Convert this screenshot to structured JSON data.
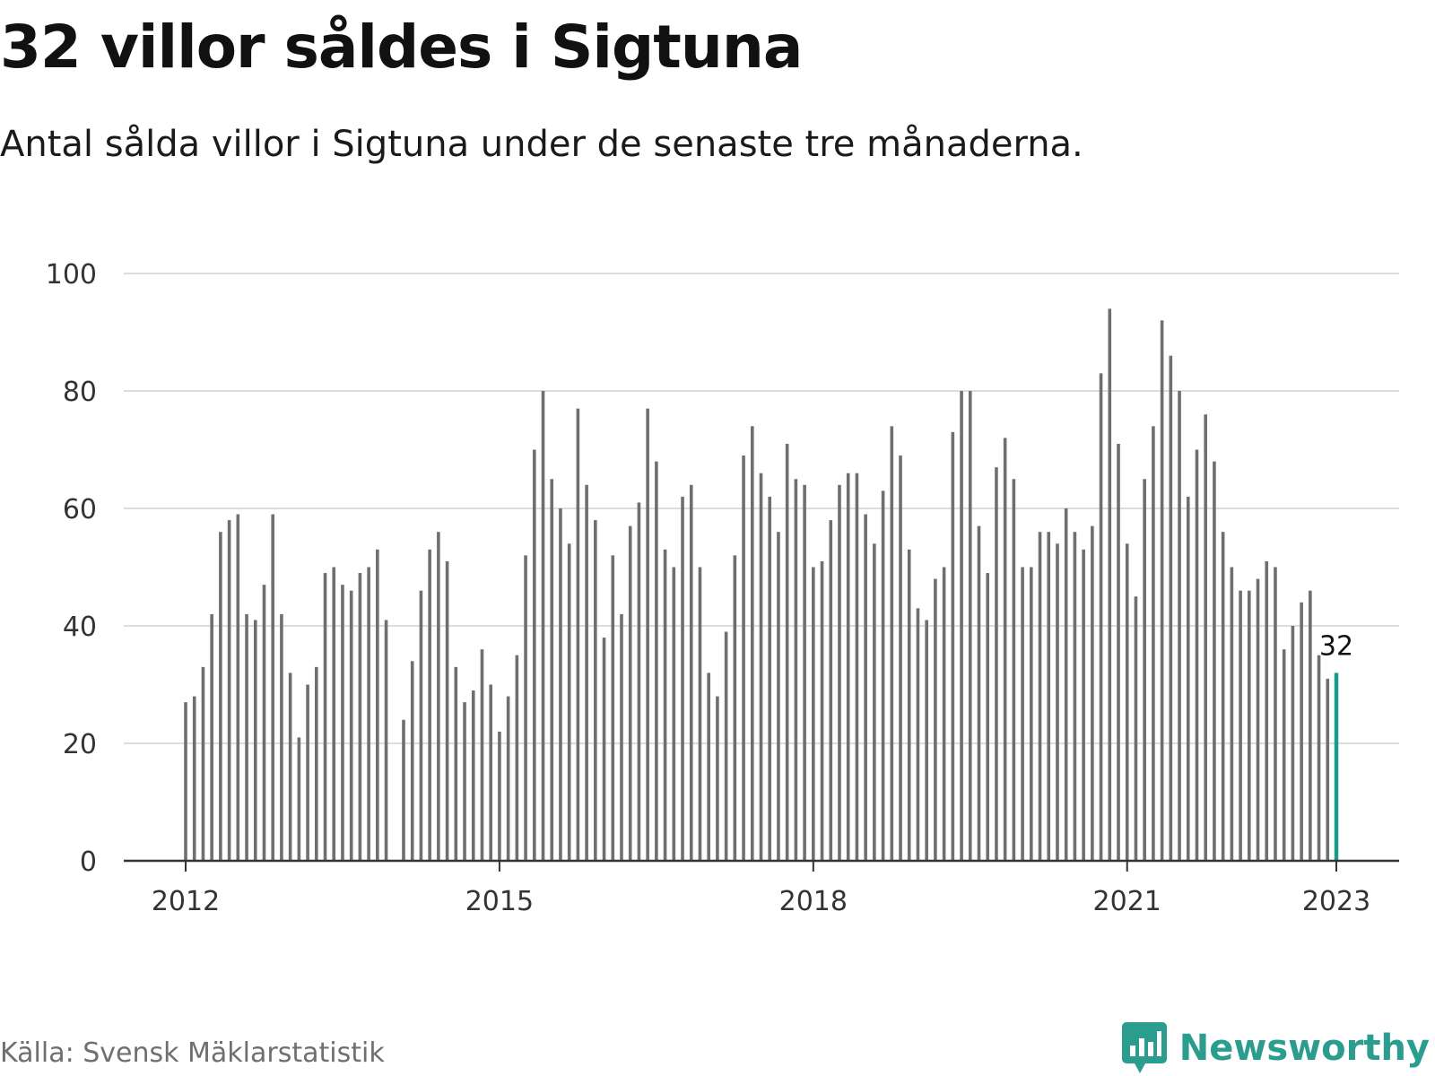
{
  "title": "32 villor såldes i Sigtuna",
  "subtitle": "Antal sålda villor i Sigtuna under de senaste tre månaderna.",
  "source": "Källa: Svensk Mäklarstatistik",
  "brand": {
    "name": "Newsworthy",
    "icon": "newsworthy-logo-icon",
    "color": "#2a9d8f"
  },
  "colors": {
    "bar": "#6f6f6f",
    "highlight": "#1a9a8c",
    "grid": "#dddddd",
    "axis": "#333333"
  },
  "chart_data": {
    "type": "bar",
    "title": "32 villor såldes i Sigtuna",
    "xlabel": "",
    "ylabel": "",
    "ylim": [
      0,
      100
    ],
    "yticks": [
      0,
      20,
      40,
      60,
      80,
      100
    ],
    "xticks": [
      "2012",
      "2015",
      "2018",
      "2021",
      "2023"
    ],
    "x_start": "2012-01",
    "x_end": "2023-01",
    "grid": true,
    "legend": "none",
    "highlight_label": "32",
    "values": [
      27,
      28,
      33,
      42,
      56,
      58,
      59,
      42,
      41,
      47,
      59,
      42,
      32,
      21,
      30,
      33,
      49,
      50,
      47,
      46,
      49,
      50,
      53,
      41,
      null,
      24,
      34,
      46,
      53,
      56,
      51,
      33,
      27,
      29,
      36,
      30,
      22,
      28,
      35,
      52,
      70,
      80,
      65,
      60,
      54,
      77,
      64,
      58,
      38,
      52,
      42,
      57,
      61,
      77,
      68,
      53,
      50,
      62,
      64,
      50,
      32,
      28,
      39,
      52,
      69,
      74,
      66,
      62,
      56,
      71,
      65,
      64,
      50,
      51,
      58,
      64,
      66,
      66,
      59,
      54,
      63,
      74,
      69,
      53,
      43,
      41,
      48,
      50,
      73,
      80,
      80,
      57,
      49,
      67,
      72,
      65,
      50,
      50,
      56,
      56,
      54,
      60,
      56,
      53,
      57,
      83,
      94,
      71,
      54,
      45,
      65,
      74,
      92,
      86,
      80,
      62,
      70,
      76,
      68,
      56,
      50,
      46,
      46,
      48,
      51,
      50,
      36,
      40,
      44,
      46,
      35,
      31,
      32
    ]
  }
}
